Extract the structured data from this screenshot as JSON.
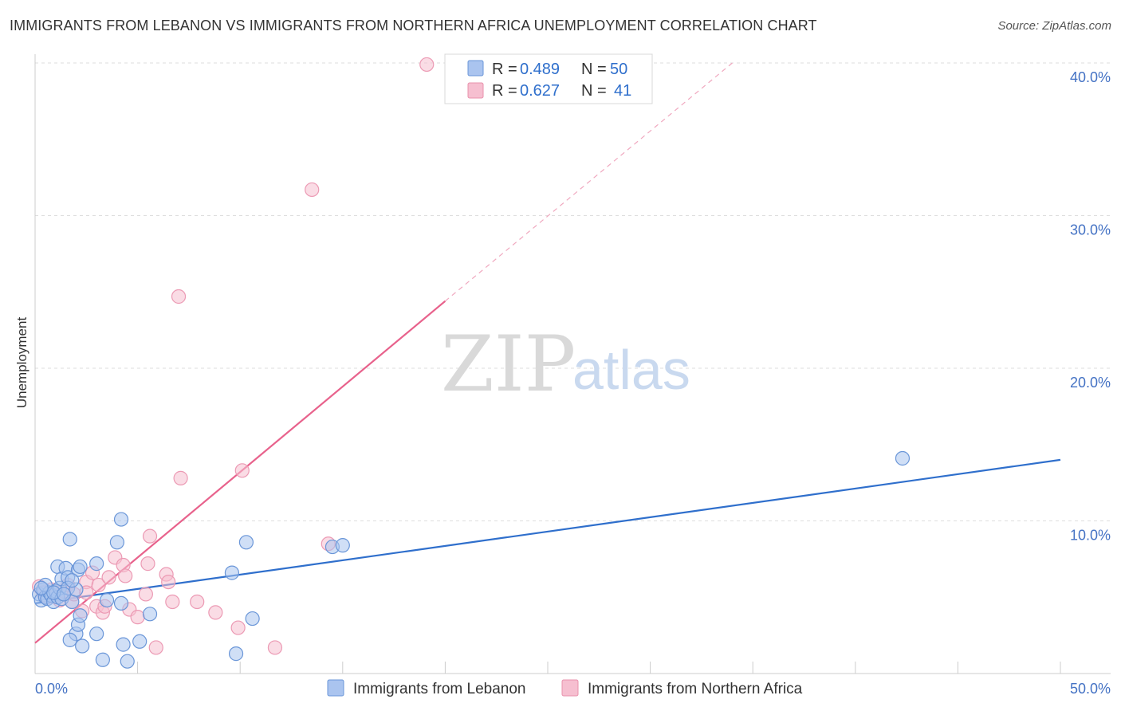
{
  "title": "IMMIGRANTS FROM LEBANON VS IMMIGRANTS FROM NORTHERN AFRICA UNEMPLOYMENT CORRELATION CHART",
  "source": "Source: ZipAtlas.com",
  "colors": {
    "blue": "#2f6fcc",
    "blue_fill": "#aac4ef",
    "pink": "#e8628c",
    "pink_fill": "#f6bfd0",
    "grid": "#dddddd",
    "tick_text": "#4472c4"
  },
  "legend": {
    "rows": [
      {
        "r_label": "R =",
        "r_value": "0.489",
        "n_label": "N =",
        "n_value": "50",
        "series": "Immigrants from Lebanon"
      },
      {
        "r_label": "R =",
        "r_value": "0.627",
        "n_label": "N =",
        "n_value": "41",
        "series": "Immigrants from Northern Africa"
      }
    ]
  },
  "watermark": {
    "zip": "ZIP",
    "atlas": "atlas"
  },
  "chart_data": {
    "type": "scatter",
    "title": "IMMIGRANTS FROM LEBANON VS IMMIGRANTS FROM NORTHERN AFRICA UNEMPLOYMENT CORRELATION CHART",
    "xlabel": "",
    "ylabel": "Unemployment",
    "xlim": [
      0,
      50
    ],
    "ylim": [
      0,
      40
    ],
    "x_tick_labels": [
      "0.0%",
      "50.0%"
    ],
    "y_ticks": [
      10,
      20,
      30,
      40
    ],
    "y_tick_labels": [
      "10.0%",
      "20.0%",
      "30.0%",
      "40.0%"
    ],
    "grid": true,
    "legend_position": "top-center",
    "series": [
      {
        "name": "Immigrants from Lebanon",
        "r": 0.489,
        "n": 50,
        "trend": {
          "x0": 0,
          "y0": 4.6,
          "x1": 50,
          "y1": 14.0,
          "dashed_to_x": 50
        },
        "points": [
          [
            0.2,
            5.2
          ],
          [
            0.3,
            4.8
          ],
          [
            0.4,
            5.5
          ],
          [
            0.5,
            5.0
          ],
          [
            0.6,
            4.9
          ],
          [
            0.7,
            5.3
          ],
          [
            0.8,
            5.1
          ],
          [
            0.9,
            4.7
          ],
          [
            1.0,
            5.4
          ],
          [
            1.1,
            5.0
          ],
          [
            1.2,
            5.6
          ],
          [
            1.3,
            4.9
          ],
          [
            1.1,
            7.0
          ],
          [
            1.3,
            6.2
          ],
          [
            1.5,
            6.9
          ],
          [
            1.6,
            6.3
          ],
          [
            1.6,
            5.6
          ],
          [
            1.7,
            8.8
          ],
          [
            1.8,
            4.7
          ],
          [
            2.0,
            5.5
          ],
          [
            2.1,
            6.8
          ],
          [
            2.2,
            7.0
          ],
          [
            2.0,
            2.6
          ],
          [
            2.1,
            3.2
          ],
          [
            2.2,
            3.8
          ],
          [
            1.7,
            2.2
          ],
          [
            2.3,
            1.8
          ],
          [
            3.0,
            7.2
          ],
          [
            3.0,
            2.6
          ],
          [
            3.3,
            0.9
          ],
          [
            3.5,
            4.8
          ],
          [
            4.0,
            8.6
          ],
          [
            4.2,
            4.6
          ],
          [
            4.2,
            10.1
          ],
          [
            4.3,
            1.9
          ],
          [
            4.5,
            0.8
          ],
          [
            5.1,
            2.1
          ],
          [
            5.6,
            3.9
          ],
          [
            9.6,
            6.6
          ],
          [
            9.8,
            1.3
          ],
          [
            10.3,
            8.6
          ],
          [
            10.6,
            3.6
          ],
          [
            14.5,
            8.3
          ],
          [
            15.0,
            8.4
          ],
          [
            42.3,
            14.1
          ],
          [
            0.5,
            5.8
          ],
          [
            0.9,
            5.3
          ],
          [
            1.4,
            5.2
          ],
          [
            0.3,
            5.6
          ],
          [
            1.8,
            6.1
          ]
        ]
      },
      {
        "name": "Immigrants from Northern Africa",
        "r": 0.627,
        "n": 41,
        "trend": {
          "x0": 0,
          "y0": 2.0,
          "x1": 20,
          "y1": 24.4,
          "dashed_to_x": 34,
          "dashed_to_y": 40.0
        },
        "points": [
          [
            0.2,
            5.7
          ],
          [
            0.4,
            5.3
          ],
          [
            0.6,
            5.0
          ],
          [
            0.8,
            5.5
          ],
          [
            1.0,
            5.1
          ],
          [
            1.2,
            4.8
          ],
          [
            1.4,
            5.4
          ],
          [
            1.6,
            5.8
          ],
          [
            1.8,
            4.7
          ],
          [
            1.9,
            5.2
          ],
          [
            2.3,
            4.1
          ],
          [
            2.5,
            6.0
          ],
          [
            2.5,
            5.3
          ],
          [
            2.8,
            6.6
          ],
          [
            3.0,
            4.4
          ],
          [
            3.1,
            5.8
          ],
          [
            3.3,
            4.0
          ],
          [
            3.4,
            4.4
          ],
          [
            3.6,
            6.3
          ],
          [
            3.9,
            7.6
          ],
          [
            4.3,
            7.1
          ],
          [
            4.4,
            6.4
          ],
          [
            4.6,
            4.2
          ],
          [
            5.0,
            3.7
          ],
          [
            5.4,
            5.2
          ],
          [
            5.5,
            7.2
          ],
          [
            5.6,
            9.0
          ],
          [
            5.9,
            1.7
          ],
          [
            6.4,
            6.5
          ],
          [
            6.5,
            6.0
          ],
          [
            6.7,
            4.7
          ],
          [
            7.0,
            24.7
          ],
          [
            7.1,
            12.8
          ],
          [
            7.9,
            4.7
          ],
          [
            8.8,
            4.0
          ],
          [
            9.9,
            3.0
          ],
          [
            10.1,
            13.3
          ],
          [
            11.7,
            1.7
          ],
          [
            13.5,
            31.7
          ],
          [
            14.3,
            8.5
          ],
          [
            19.1,
            39.9
          ]
        ]
      }
    ]
  }
}
